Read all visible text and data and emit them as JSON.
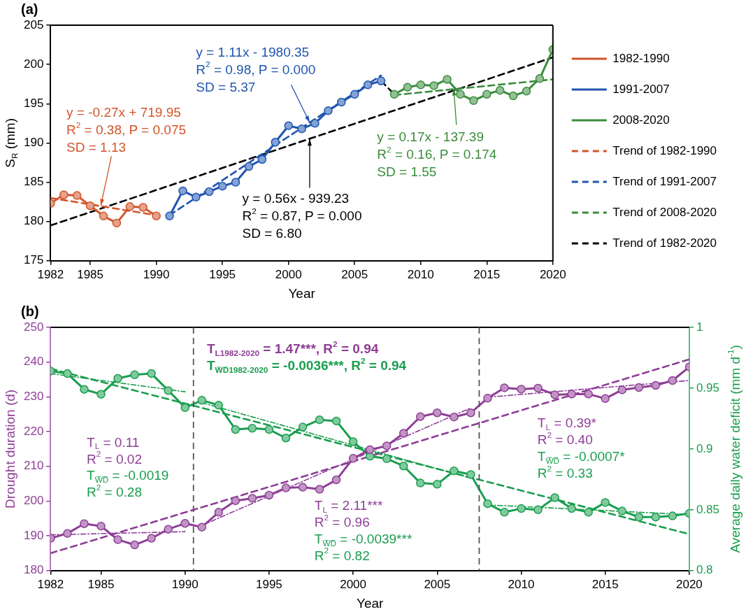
{
  "chart_data": [
    {
      "type": "line",
      "title": "(a)",
      "xlabel": "Year",
      "ylabel": "S$_{R}$ (mm)",
      "xlim": [
        1982,
        2020
      ],
      "xticks": [
        1982,
        1985,
        1990,
        1995,
        2000,
        2005,
        2010,
        2015,
        2020
      ],
      "ylim": [
        175,
        205
      ],
      "yticks": [
        175,
        180,
        185,
        190,
        195,
        200,
        205
      ],
      "legend": "right",
      "marker": "circle",
      "series": [
        {
          "name": "1982-1990",
          "color": "#d2552b",
          "x": [
            1982,
            1983,
            1984,
            1985,
            1986,
            1987,
            1988,
            1989,
            1990
          ],
          "values": [
            182.3,
            183.4,
            183.3,
            182.0,
            180.7,
            179.8,
            181.9,
            181.8,
            180.7
          ]
        },
        {
          "name": "1991-2007",
          "color": "#1f55b0",
          "x": [
            1991,
            1992,
            1993,
            1994,
            1995,
            1996,
            1997,
            1998,
            1999,
            2000,
            2001,
            2002,
            2003,
            2004,
            2005,
            2006,
            2007
          ],
          "values": [
            180.7,
            183.9,
            183.1,
            183.8,
            184.5,
            185.0,
            187.0,
            187.9,
            190.1,
            192.2,
            191.8,
            192.5,
            194.1,
            195.2,
            196.2,
            197.4,
            197.9
          ]
        },
        {
          "name": "2008-2020",
          "color": "#3a8c3c",
          "x": [
            2008,
            2009,
            2010,
            2011,
            2012,
            2013,
            2014,
            2015,
            2016,
            2017,
            2018,
            2019,
            2020
          ],
          "values": [
            196.2,
            197.1,
            197.4,
            197.3,
            198.1,
            196.2,
            195.4,
            196.2,
            196.7,
            196.0,
            196.6,
            198.2,
            201.9
          ]
        },
        {
          "name": "Trend of 1982-1990",
          "color": "#d2552b",
          "marker": "none",
          "line_style": "dashed",
          "x": [
            1982,
            1990
          ],
          "values": [
            183.0,
            180.8
          ]
        },
        {
          "name": "Trend of 1991-2007",
          "color": "#1f55b0",
          "marker": "none",
          "line_style": "dashed",
          "x": [
            1991,
            2007
          ],
          "values": [
            180.8,
            198.6
          ]
        },
        {
          "name": "Trend of 2008-2020",
          "color": "#3a8c3c",
          "marker": "none",
          "line_style": "dashed",
          "x": [
            2008,
            2020
          ],
          "values": [
            196.1,
            198.1
          ]
        },
        {
          "name": "Trend of 1982-2020",
          "color": "#000000",
          "marker": "none",
          "line_style": "dashed",
          "x": [
            1982,
            2020
          ],
          "values": [
            179.5,
            200.9
          ]
        },
        {
          "color": "#000000",
          "marker": "none",
          "line_style": "dashed",
          "x": [
            2007,
            2008
          ],
          "values": [
            197.9,
            196.2
          ]
        }
      ],
      "annotations": [
        {
          "text": "y = -0.27x + 719.95\nR$^{2}$ = 0.38, P = 0.075\nSD = 1.13",
          "x": 1985.8,
          "y": 182.0
        },
        {
          "text": "y = 1.11x - 1980.35\nR$^{2}$ = 0.98, P = 0.000\nSD = 5.37",
          "x": 2001.6,
          "y": 192.6
        },
        {
          "text": "y = 0.56x - 939.23\nR$^{2}$ = 0.87, P = 0.000\nSD = 6.80",
          "x": 2001.6,
          "y": 190.5
        },
        {
          "text": "y = 0.17x - 137.39\nR$^{2}$ = 0.16, P = 0.174\nSD = 1.55",
          "x": 2012.5,
          "y": 196.9
        }
      ]
    },
    {
      "type": "line",
      "title": "(b)",
      "xlabel": "Year",
      "ylabel": "Drought duration (d)",
      "y2label": "Average daily water deficit (mm d$^{-1}$)",
      "xlim": [
        1982,
        2020
      ],
      "xticks": [
        1982,
        1985,
        1990,
        1995,
        2000,
        2005,
        2010,
        2015,
        2020
      ],
      "ylim": [
        180,
        250
      ],
      "yticks": [
        180,
        190,
        200,
        210,
        220,
        230,
        240,
        250
      ],
      "y2lim": [
        0.8,
        1
      ],
      "y2ticks": [
        0.8,
        0.85,
        0.9,
        0.95,
        1
      ],
      "marker": "circle",
      "x": [
        1982,
        1983,
        1984,
        1985,
        1986,
        1987,
        1988,
        1989,
        1990,
        1991,
        1992,
        1993,
        1994,
        1995,
        1996,
        1997,
        1998,
        1999,
        2000,
        2001,
        2002,
        2003,
        2004,
        2005,
        2006,
        2007,
        2008,
        2009,
        2010,
        2011,
        2012,
        2013,
        2014,
        2015,
        2016,
        2017,
        2018,
        2019,
        2020
      ],
      "series": [
        {
          "color": "#8e3e96",
          "values": [
            189.3,
            190.7,
            193.5,
            192.8,
            188.9,
            187.4,
            189.3,
            191.9,
            193.6,
            192.5,
            196.8,
            200.1,
            200.8,
            201.7,
            203.8,
            204.0,
            203.4,
            206.1,
            212.3,
            214.8,
            215.9,
            219.5,
            224.3,
            225.4,
            224.2,
            225.4,
            229.6,
            232.6,
            232.2,
            232.5,
            230.6,
            230.8,
            230.8,
            229.5,
            232.0,
            232.7,
            233.3,
            234.7,
            238.6
          ]
        },
        {
          "color": "#1a9e4e",
          "axis": "y2",
          "values": [
            0.964,
            0.962,
            0.949,
            0.945,
            0.958,
            0.961,
            0.962,
            0.948,
            0.934,
            0.94,
            0.936,
            0.916,
            0.917,
            0.916,
            0.909,
            0.918,
            0.924,
            0.923,
            0.906,
            0.894,
            0.892,
            0.886,
            0.872,
            0.871,
            0.882,
            0.879,
            0.855,
            0.848,
            0.851,
            0.85,
            0.86,
            0.851,
            0.848,
            0.856,
            0.849,
            0.844,
            0.844,
            0.845,
            0.847
          ]
        },
        {
          "color": "#8e3e96",
          "marker": "none",
          "line_style": "dashed",
          "x": [
            1982,
            2020
          ],
          "values": [
            185.0,
            240.8
          ]
        },
        {
          "color": "#1a9e4e",
          "axis": "y2",
          "marker": "none",
          "line_style": "dashed",
          "x": [
            1982,
            2020
          ],
          "values": [
            0.966,
            0.83
          ]
        },
        {
          "color": "#8e3e96",
          "marker": "none",
          "line_style": "dotted",
          "x": [
            1982,
            1990
          ],
          "values": [
            190.3,
            191.2
          ]
        },
        {
          "color": "#8e3e96",
          "marker": "none",
          "line_style": "dotted",
          "x": [
            1991,
            2007
          ],
          "values": [
            193.0,
            226.8
          ]
        },
        {
          "color": "#8e3e96",
          "marker": "none",
          "line_style": "dotted",
          "x": [
            2008,
            2020
          ],
          "values": [
            229.9,
            234.7
          ]
        },
        {
          "color": "#1a9e4e",
          "axis": "y2",
          "marker": "none",
          "line_style": "dotted",
          "x": [
            1982,
            1990
          ],
          "values": [
            0.962,
            0.947
          ]
        },
        {
          "color": "#1a9e4e",
          "axis": "y2",
          "marker": "none",
          "line_style": "dotted",
          "x": [
            1991,
            2007
          ],
          "values": [
            0.938,
            0.876
          ]
        },
        {
          "color": "#1a9e4e",
          "axis": "y2",
          "marker": "none",
          "line_style": "dotted",
          "x": [
            2008,
            2020
          ],
          "values": [
            0.854,
            0.846
          ]
        }
      ],
      "ref_lines": [
        {
          "axis": "x",
          "value": 1990.5,
          "color": "#555555",
          "line_style": "dashed"
        },
        {
          "axis": "x",
          "value": 2007.5,
          "color": "#555555",
          "line_style": "dashed"
        }
      ],
      "annotations": [
        "T$_{L1982-2020}$ = 1.47***, R$^{2}$ = 0.94",
        "T$_{W̅D̅1982-2020}$ = -0.0036***, R$^{2}$ = 0.94",
        "T$_{L}$ = 0.11",
        "R$^{2}$ = 0.02",
        "T$_{W̅D̅}$ = -0.0019",
        "R$^{2}$ = 0.28",
        "T$_{L}$ = 2.11***",
        "R$^{2}$ = 0.96",
        "T$_{W̅D̅}$ = -0.0039***",
        "R$^{2}$ = 0.82",
        "T$_{L}$ = 0.39*",
        "R$^{2}$ = 0.40",
        "T$_{W̅D̅}$ = -0.0007*",
        "R$^{2}$ = 0.33"
      ]
    }
  ]
}
